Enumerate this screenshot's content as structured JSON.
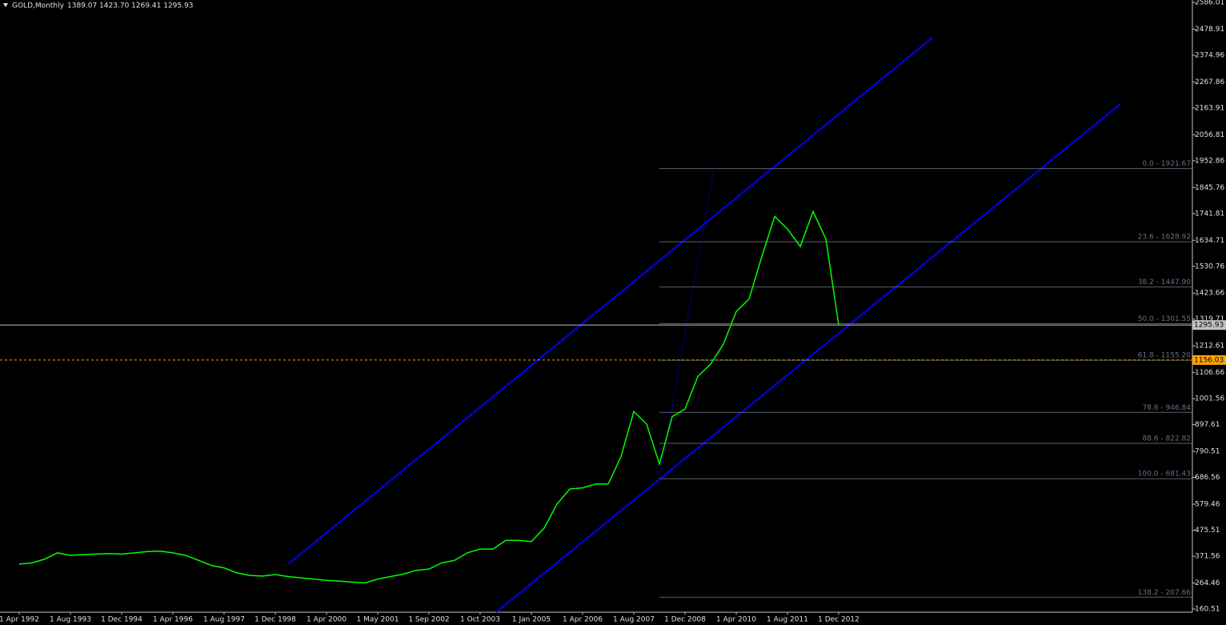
{
  "chart_data": {
    "type": "line",
    "title": "GOLD,Monthly",
    "subtitle": "1389.07 1423.70 1269.41 1295.93",
    "categories": [
      "1 Apr 1992",
      null,
      null,
      null,
      "1 Aug 1993",
      null,
      null,
      null,
      "1 Dec 1994",
      null,
      null,
      null,
      "1 Apr 1996",
      null,
      null,
      null,
      "1 Aug 1997",
      null,
      null,
      null,
      "1 Dec 1998",
      null,
      null,
      null,
      "1 Apr 2000",
      null,
      null,
      null,
      "1 May 2001",
      null,
      null,
      null,
      "1 Sep 2002",
      null,
      null,
      null,
      "1 Oct 2003",
      null,
      null,
      null,
      "1 Jan 2005",
      null,
      null,
      null,
      "1 Apr 2006",
      null,
      null,
      null,
      "1 Aug 2007",
      null,
      null,
      null,
      "1 Dec 2008",
      null,
      null,
      null,
      "1 Apr 2010",
      null,
      null,
      null,
      "1 Aug 2011",
      null,
      null,
      null,
      "1 Dec 2012"
    ],
    "values": [
      340,
      345,
      360,
      385,
      375,
      378,
      380,
      382,
      380,
      385,
      390,
      392,
      385,
      375,
      355,
      335,
      325,
      305,
      295,
      292,
      298,
      290,
      285,
      280,
      275,
      272,
      268,
      265,
      280,
      290,
      300,
      315,
      320,
      345,
      355,
      385,
      400,
      400,
      435,
      435,
      430,
      484,
      580,
      640,
      645,
      660,
      660,
      770,
      950,
      900,
      740,
      930,
      960,
      1090,
      1140,
      1220,
      1350,
      1400,
      1570,
      1730,
      1680,
      1610,
      1750,
      1640,
      1296
    ],
    "color": "#00ff00",
    "ylim": [
      147.7,
      2595.6
    ],
    "yticks": [
      2586.01,
      2478.91,
      2374.96,
      2267.86,
      2163.91,
      2056.81,
      1952.86,
      1845.76,
      1741.81,
      1634.71,
      1530.76,
      1423.66,
      1319.71,
      1212.61,
      1106.66,
      1001.56,
      897.61,
      790.51,
      686.56,
      579.46,
      475.51,
      371.56,
      264.46,
      160.51
    ],
    "fib_levels": [
      {
        "value": 1921.67,
        "label": "0.0 - 1921.67"
      },
      {
        "value": 1628.92,
        "label": "23.6 - 1628.92"
      },
      {
        "value": 1447.9,
        "label": "38.2 - 1447.90"
      },
      {
        "value": 1301.55,
        "label": "50.0 - 1301.55"
      },
      {
        "value": 1155.2,
        "label": "61.8 - 1155.20"
      },
      {
        "value": 946.84,
        "label": "78.6 - 946.84"
      },
      {
        "value": 822.82,
        "label": "88.6 - 822.82"
      },
      {
        "value": 681.43,
        "label": "100.0 - 681.43"
      },
      {
        "value": 207.66,
        "label": "138.2 - 207.66"
      }
    ],
    "price_lines": [
      {
        "value": 1295.93,
        "color": "#c0c0c0"
      },
      {
        "value": 1156.03,
        "color": "#ffa500"
      }
    ]
  }
}
